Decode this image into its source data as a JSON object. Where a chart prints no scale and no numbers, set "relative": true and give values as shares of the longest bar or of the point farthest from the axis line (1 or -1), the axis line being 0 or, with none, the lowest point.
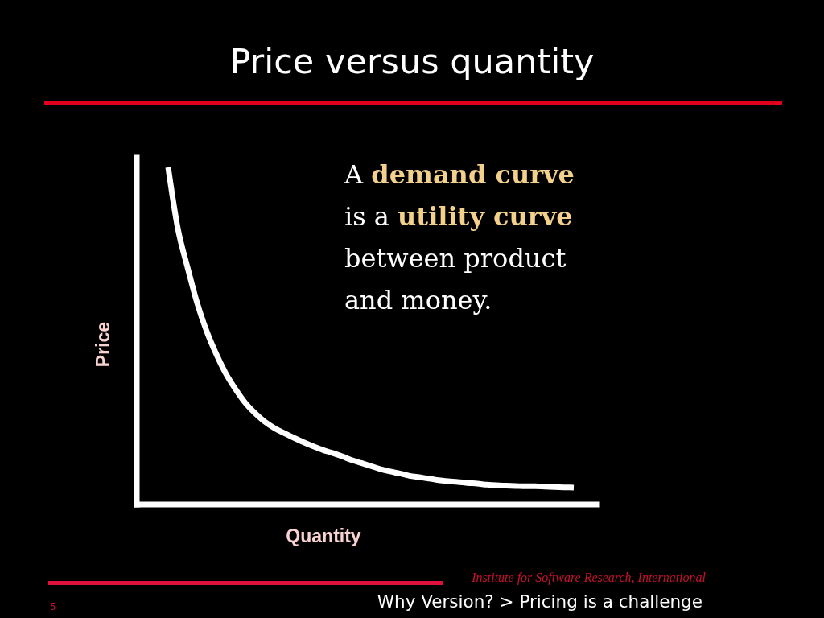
{
  "chart_data": {
    "type": "line",
    "title": "Price versus quantity",
    "xlabel": "Quantity",
    "ylabel": "Price",
    "annotations": [
      "A",
      "demand curve",
      "is a",
      "utility curve",
      "between product",
      "and money.",
      "Institute for Software Research, International",
      "Why Version? > Pricing is a challenge",
      "5"
    ],
    "categories": [
      null,
      null,
      null,
      null,
      null,
      null,
      null,
      null,
      null,
      null,
      null,
      null,
      null,
      null,
      null,
      null,
      null,
      null,
      null,
      null,
      null,
      null,
      null,
      null,
      null,
      null,
      null,
      null,
      null,
      null,
      null,
      null,
      null,
      null,
      null,
      null,
      null,
      null,
      null,
      null,
      null,
      null,
      null
    ],
    "values": [
      1,
      0.819,
      0.704,
      0.598,
      0.513,
      0.445,
      0.387,
      0.341,
      0.301,
      0.271,
      0.246,
      0.227,
      0.212,
      0.198,
      0.185,
      0.173,
      0.162,
      0.153,
      0.143,
      0.132,
      0.123,
      0.114,
      0.105,
      0.098,
      0.092,
      0.085,
      0.081,
      0.077,
      0.072,
      0.069,
      0.067,
      0.064,
      0.062,
      0.059,
      0.057,
      0.056,
      0.055,
      0.054,
      0.054,
      0.053,
      0.052,
      0.051,
      0.05
    ],
    "color": "#ffffff",
    "relative": true,
    "marker": "none"
  }
}
